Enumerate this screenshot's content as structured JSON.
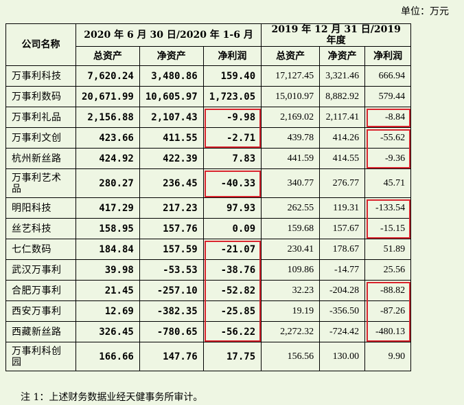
{
  "unit_label": "单位：万元",
  "header": {
    "company": "公司名称",
    "period1": "2020 年 6 月 30 日/2020 年 1-6 月",
    "period2": "2019 年 12 月 31 日/2019 年度",
    "cols": [
      "总资产",
      "净资产",
      "净利润",
      "总资产",
      "净资产",
      "净利润"
    ]
  },
  "rows": [
    {
      "name": "万事利科技",
      "v": [
        "7,620.24",
        "3,480.86",
        "159.40",
        "17,127.45",
        "3,321.46",
        "666.94"
      ]
    },
    {
      "name": "万事利数码",
      "v": [
        "20,671.99",
        "10,605.97",
        "1,723.05",
        "15,010.97",
        "8,882.92",
        "579.44"
      ]
    },
    {
      "name": "万事利礼品",
      "v": [
        "2,156.88",
        "2,107.43",
        "-9.98",
        "2,169.02",
        "2,117.41",
        "-8.84"
      ]
    },
    {
      "name": "万事利文创",
      "v": [
        "423.66",
        "411.55",
        "-2.71",
        "439.78",
        "414.26",
        "-55.62"
      ]
    },
    {
      "name": "杭州新丝路",
      "v": [
        "424.92",
        "422.39",
        "7.83",
        "441.59",
        "414.55",
        "-9.36"
      ]
    },
    {
      "name": "万事利艺术品",
      "v": [
        "280.27",
        "236.45",
        "-40.33",
        "340.77",
        "276.77",
        "45.71"
      ]
    },
    {
      "name": "明阳科技",
      "v": [
        "417.29",
        "217.23",
        "97.93",
        "262.55",
        "119.31",
        "-133.54"
      ]
    },
    {
      "name": "丝艺科技",
      "v": [
        "158.95",
        "157.76",
        "0.09",
        "159.68",
        "157.67",
        "-15.15"
      ]
    },
    {
      "name": "七仁数码",
      "v": [
        "184.84",
        "157.59",
        "-21.07",
        "230.41",
        "178.67",
        "51.89"
      ]
    },
    {
      "name": "武汉万事利",
      "v": [
        "39.98",
        "-53.53",
        "-38.76",
        "109.86",
        "-14.77",
        "25.56"
      ]
    },
    {
      "name": "合肥万事利",
      "v": [
        "21.45",
        "-257.10",
        "-52.82",
        "32.23",
        "-204.28",
        "-88.82"
      ]
    },
    {
      "name": "西安万事利",
      "v": [
        "12.69",
        "-382.35",
        "-25.85",
        "19.19",
        "-356.50",
        "-87.26"
      ]
    },
    {
      "name": "西藏新丝路",
      "v": [
        "326.45",
        "-780.65",
        "-56.22",
        "2,272.32",
        "-724.42",
        "-480.13"
      ]
    },
    {
      "name": "万事利科创园",
      "v": [
        "166.66",
        "147.76",
        "17.75",
        "156.56",
        "130.00",
        "9.90"
      ]
    }
  ],
  "highlight_color": "#d9232d",
  "footnote": "注 1：上述财务数据业经天健事务所审计。"
}
